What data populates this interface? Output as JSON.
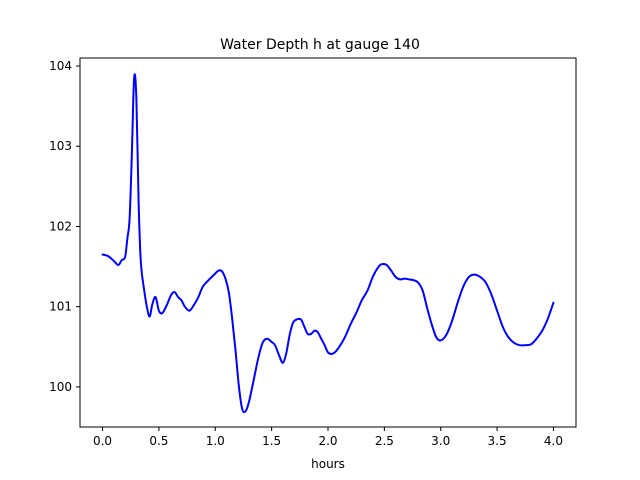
{
  "chart_data": {
    "type": "line",
    "title": "Water Depth h at gauge 140",
    "xlabel": "hours",
    "ylabel": "",
    "xlim": [
      -0.2,
      4.2
    ],
    "ylim": [
      99.5,
      104.1
    ],
    "xticks": [
      0.0,
      0.5,
      1.0,
      1.5,
      2.0,
      2.5,
      3.0,
      3.5,
      4.0
    ],
    "xtick_labels": [
      "0.0",
      "0.5",
      "1.0",
      "1.5",
      "2.0",
      "2.5",
      "3.0",
      "3.5",
      "4.0"
    ],
    "yticks": [
      100,
      101,
      102,
      103,
      104
    ],
    "ytick_labels": [
      "100",
      "101",
      "102",
      "103",
      "104"
    ],
    "grid": false,
    "legend": "none",
    "series": [
      {
        "color": "#0000ff",
        "x": [
          0.0,
          0.05,
          0.1,
          0.14,
          0.17,
          0.2,
          0.22,
          0.24,
          0.26,
          0.28,
          0.3,
          0.32,
          0.34,
          0.37,
          0.4,
          0.42,
          0.44,
          0.47,
          0.5,
          0.53,
          0.57,
          0.61,
          0.64,
          0.67,
          0.7,
          0.73,
          0.77,
          0.81,
          0.85,
          0.89,
          0.94,
          0.99,
          1.03,
          1.06,
          1.09,
          1.12,
          1.15,
          1.18,
          1.21,
          1.24,
          1.27,
          1.3,
          1.34,
          1.38,
          1.42,
          1.46,
          1.5,
          1.53,
          1.57,
          1.6,
          1.63,
          1.66,
          1.69,
          1.72,
          1.76,
          1.79,
          1.82,
          1.85,
          1.88,
          1.91,
          1.94,
          1.97,
          2.0,
          2.03,
          2.06,
          2.1,
          2.15,
          2.2,
          2.25,
          2.3,
          2.35,
          2.4,
          2.45,
          2.48,
          2.52,
          2.56,
          2.6,
          2.64,
          2.68,
          2.72,
          2.76,
          2.8,
          2.84,
          2.88,
          2.92,
          2.96,
          3.0,
          3.05,
          3.1,
          3.15,
          3.2,
          3.25,
          3.3,
          3.35,
          3.4,
          3.45,
          3.5,
          3.55,
          3.6,
          3.65,
          3.7,
          3.75,
          3.8,
          3.85,
          3.9,
          3.95,
          4.0
        ],
        "y": [
          101.65,
          101.63,
          101.57,
          101.52,
          101.58,
          101.62,
          101.85,
          102.1,
          102.9,
          103.85,
          103.6,
          102.3,
          101.55,
          101.2,
          100.95,
          100.88,
          101.02,
          101.12,
          100.95,
          100.92,
          101.02,
          101.15,
          101.18,
          101.12,
          101.08,
          101.0,
          100.95,
          101.02,
          101.12,
          101.25,
          101.33,
          101.4,
          101.45,
          101.44,
          101.35,
          101.18,
          100.85,
          100.45,
          100.0,
          99.72,
          99.7,
          99.82,
          100.08,
          100.35,
          100.55,
          100.6,
          100.56,
          100.52,
          100.38,
          100.3,
          100.42,
          100.65,
          100.8,
          100.84,
          100.84,
          100.75,
          100.66,
          100.66,
          100.7,
          100.68,
          100.6,
          100.52,
          100.43,
          100.41,
          100.43,
          100.5,
          100.62,
          100.78,
          100.92,
          101.08,
          101.2,
          101.38,
          101.5,
          101.53,
          101.52,
          101.45,
          101.37,
          101.34,
          101.35,
          101.34,
          101.33,
          101.3,
          101.2,
          100.98,
          100.78,
          100.62,
          100.58,
          100.65,
          100.82,
          101.05,
          101.25,
          101.37,
          101.4,
          101.37,
          101.3,
          101.15,
          100.95,
          100.75,
          100.62,
          100.55,
          100.52,
          100.52,
          100.53,
          100.6,
          100.7,
          100.85,
          101.05
        ]
      }
    ]
  }
}
